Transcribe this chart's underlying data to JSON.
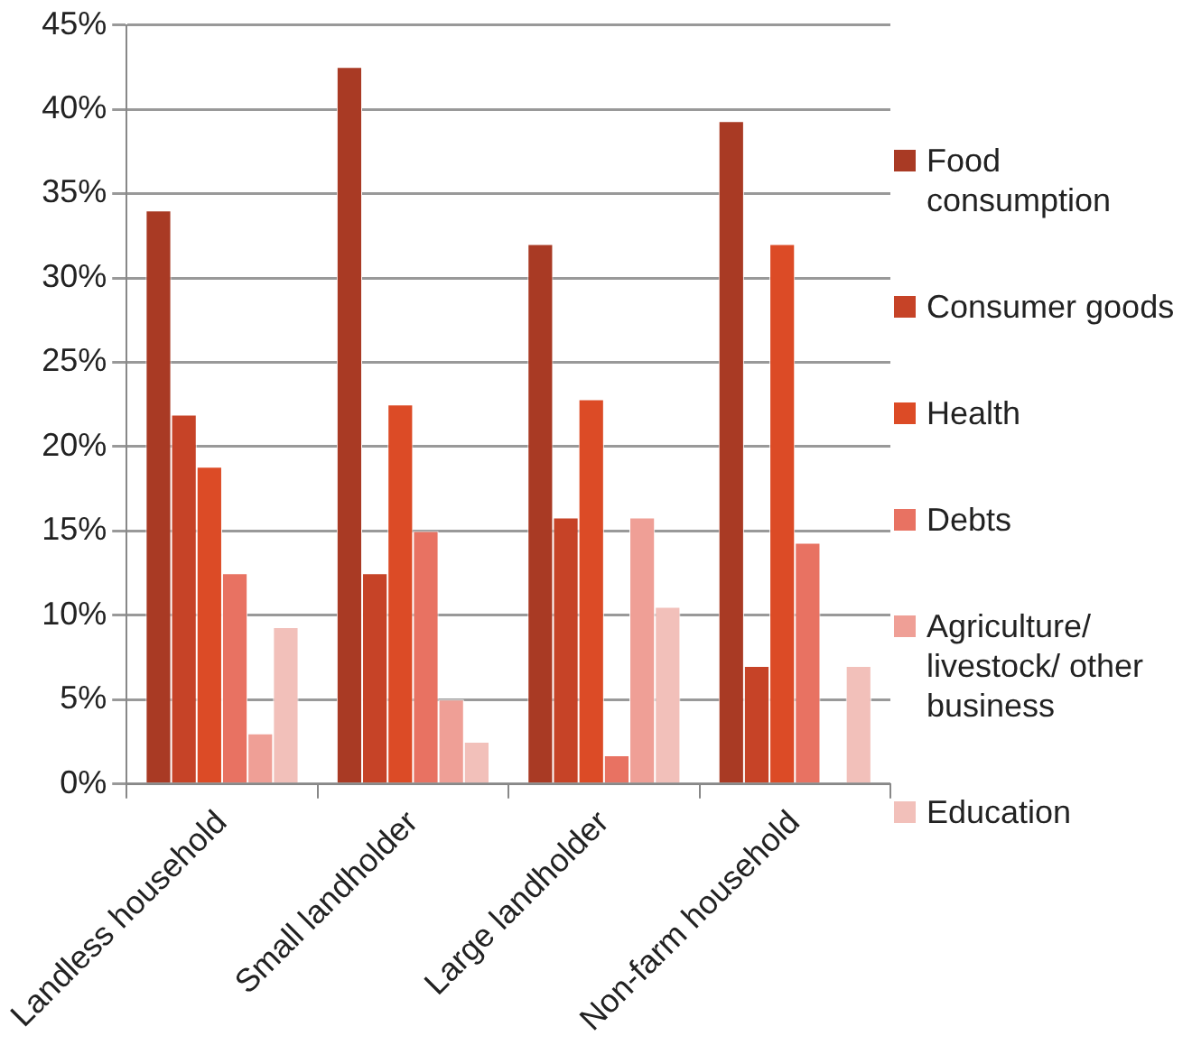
{
  "chart_data": {
    "type": "bar",
    "categories": [
      "Landless household",
      "Small landholder",
      "Large landholder",
      "Non-farm household"
    ],
    "series": [
      {
        "name": "Food consumption",
        "color": "#a93a24",
        "values": [
          34.0,
          42.5,
          32.0,
          39.3
        ]
      },
      {
        "name": "Consumer goods",
        "color": "#c64327",
        "values": [
          21.9,
          12.5,
          15.8,
          7.0
        ]
      },
      {
        "name": "Health",
        "color": "#dc4b26",
        "values": [
          18.8,
          22.5,
          22.8,
          32.0
        ]
      },
      {
        "name": "Debts",
        "color": "#e87262",
        "values": [
          12.5,
          15.0,
          1.7,
          14.3
        ]
      },
      {
        "name": "Agriculture/ livestock/ other business",
        "color": "#ef9f96",
        "values": [
          3.0,
          5.0,
          15.8,
          0
        ]
      },
      {
        "name": "Education",
        "color": "#f2c0ba",
        "values": [
          9.3,
          2.5,
          10.5,
          7.0
        ]
      }
    ],
    "ylim": [
      0,
      45
    ],
    "yticks": [
      {
        "value": 0,
        "label": "0%"
      },
      {
        "value": 5,
        "label": "5%"
      },
      {
        "value": 10,
        "label": "10%"
      },
      {
        "value": 15,
        "label": "15%"
      },
      {
        "value": 20,
        "label": "20%"
      },
      {
        "value": 25,
        "label": "25%"
      },
      {
        "value": 30,
        "label": "30%"
      },
      {
        "value": 35,
        "label": "35%"
      },
      {
        "value": 40,
        "label": "40%"
      },
      {
        "value": 45,
        "label": "45%"
      }
    ],
    "grid": "y",
    "legend": "right"
  }
}
